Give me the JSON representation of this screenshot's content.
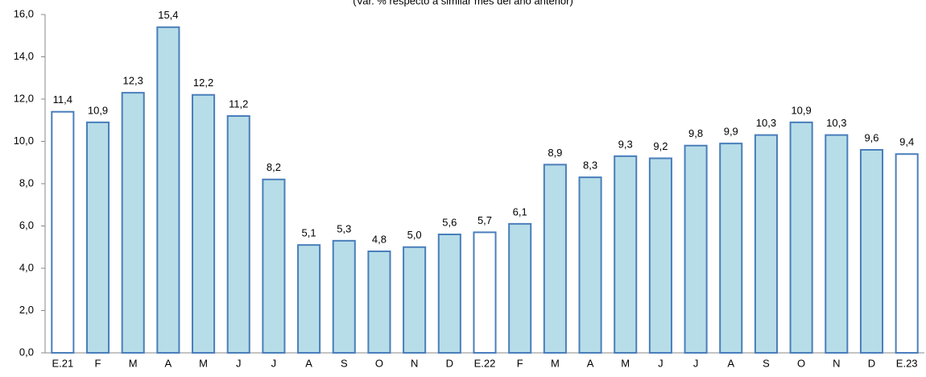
{
  "chart_data": {
    "type": "bar",
    "subtitle": "(Var. % respecto a similar mes del año anterior)",
    "categories": [
      "E.21",
      "F",
      "M",
      "A",
      "M",
      "J",
      "J",
      "A",
      "S",
      "O",
      "N",
      "D",
      "E.22",
      "F",
      "M",
      "A",
      "M",
      "J",
      "J",
      "A",
      "S",
      "O",
      "N",
      "D",
      "E.23"
    ],
    "values": [
      11.4,
      10.9,
      12.3,
      15.4,
      12.2,
      11.2,
      8.2,
      5.1,
      5.3,
      4.8,
      5.0,
      5.6,
      5.7,
      6.1,
      8.9,
      8.3,
      9.3,
      9.2,
      9.8,
      9.9,
      10.3,
      10.9,
      10.3,
      9.6,
      9.4
    ],
    "value_labels": [
      "11,4",
      "10,9",
      "12,3",
      "15,4",
      "12,2",
      "11,2",
      "8,2",
      "5,1",
      "5,3",
      "4,8",
      "5,0",
      "5,6",
      "5,7",
      "6,1",
      "8,9",
      "8,3",
      "9,3",
      "9,2",
      "9,8",
      "9,9",
      "10,3",
      "10,9",
      "10,3",
      "9,6",
      "9,4"
    ],
    "colors": [
      "#ffffff",
      "#b7dde8",
      "#b7dde8",
      "#b7dde8",
      "#b7dde8",
      "#b7dde8",
      "#b7dde8",
      "#b7dde8",
      "#b7dde8",
      "#b7dde8",
      "#b7dde8",
      "#b7dde8",
      "#ffffff",
      "#b7dde8",
      "#b7dde8",
      "#b7dde8",
      "#b7dde8",
      "#b7dde8",
      "#b7dde8",
      "#b7dde8",
      "#b7dde8",
      "#b7dde8",
      "#b7dde8",
      "#b7dde8",
      "#ffffff"
    ],
    "edge_color": "#4a7ebb",
    "ylim": [
      0,
      16
    ],
    "yticks": [
      {
        "value": 0,
        "label": "0,0"
      },
      {
        "value": 2,
        "label": "2,0"
      },
      {
        "value": 4,
        "label": "4,0"
      },
      {
        "value": 6,
        "label": "6,0"
      },
      {
        "value": 8,
        "label": "8,0"
      },
      {
        "value": 10,
        "label": "10,0"
      },
      {
        "value": 12,
        "label": "12,0"
      },
      {
        "value": 14,
        "label": "14,0"
      },
      {
        "value": 16,
        "label": "16,0"
      }
    ]
  }
}
